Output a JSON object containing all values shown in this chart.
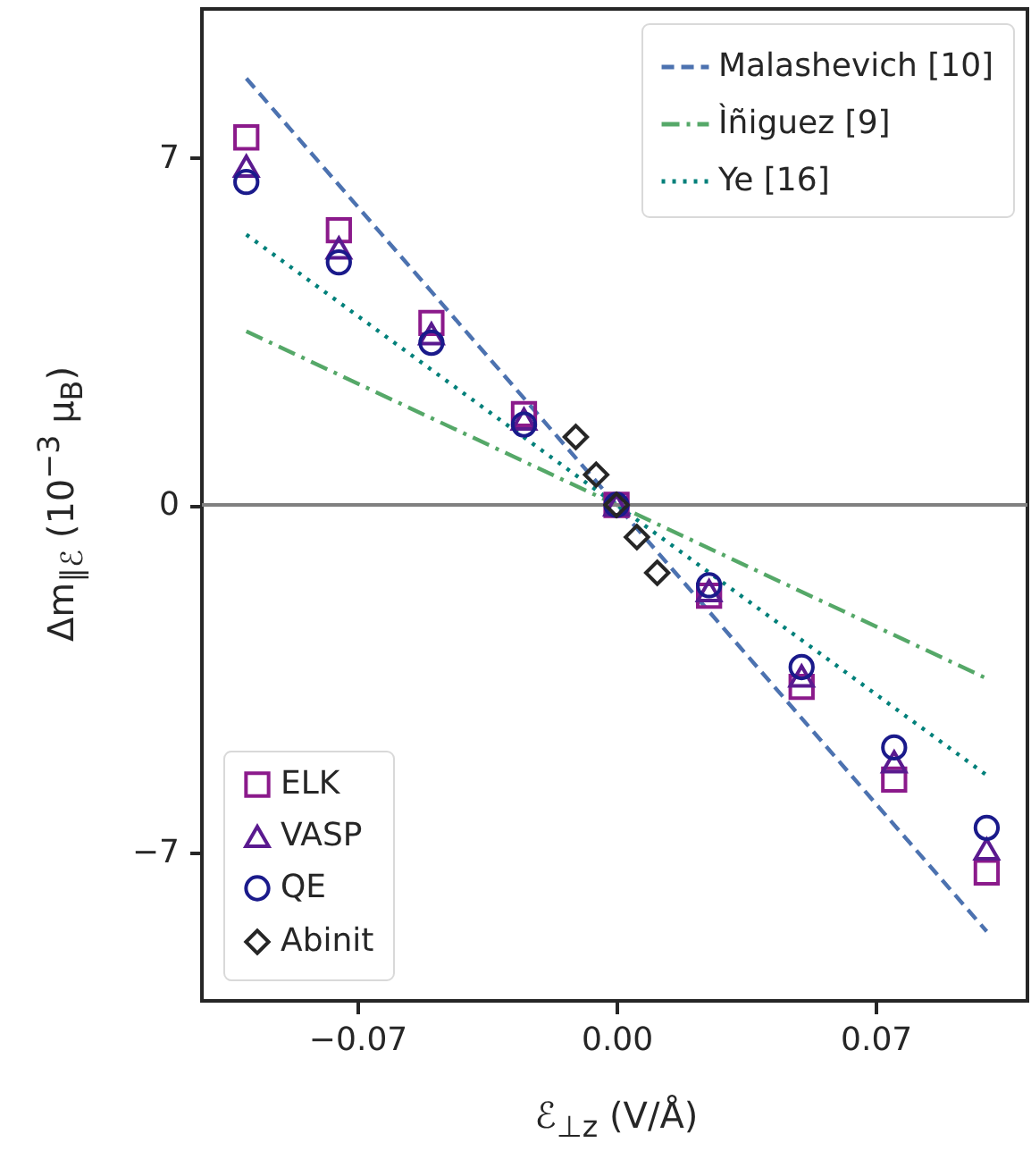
{
  "chart_data": {
    "type": "scatter",
    "xlabel": "ℰ$_{⊥z}$ (V/Å)",
    "ylabel": "Δm$_{∥ℰ}$ (10$^{−3}$ μ$_{B}$)",
    "xlim": [
      -0.112,
      0.111
    ],
    "ylim": [
      -10,
      10
    ],
    "xticks": [
      {
        "value": -0.07,
        "label": "−0.07"
      },
      {
        "value": 0,
        "label": "0.00"
      },
      {
        "value": 0.07,
        "label": "0.07"
      }
    ],
    "yticks": [
      {
        "value": -7,
        "label": "−7"
      },
      0,
      7
    ],
    "grid": false,
    "legend": "top right",
    "ref_lines": [
      {
        "axis": "y",
        "value": 0,
        "color": "#808080"
      }
    ],
    "series": [
      {
        "name": "Malashevich [10]",
        "type": "line",
        "line_style": "dashed",
        "color": "#4c72b0",
        "x": [
          -0.1,
          0.1
        ],
        "values": [
          8.6,
          -8.6
        ]
      },
      {
        "name": "Ìñiguez [9]",
        "type": "line",
        "line_style": "dashdot",
        "color": "#55a868",
        "x": [
          -0.1,
          0.1
        ],
        "values": [
          3.5,
          -3.5
        ]
      },
      {
        "name": "Ye [16]",
        "type": "line",
        "line_style": "dotted",
        "color": "#00807a",
        "x": [
          -0.1,
          0.1
        ],
        "values": [
          5.45,
          -5.45
        ]
      },
      {
        "name": "ELK",
        "marker": "square",
        "color": "#8b1a8b",
        "x": [
          -0.1,
          -0.075,
          -0.05,
          -0.025,
          0,
          0.025,
          0.05,
          0.075,
          0.1
        ],
        "values": [
          7.41,
          5.54,
          3.67,
          1.83,
          0,
          -1.83,
          -3.67,
          -5.54,
          -7.41
        ]
      },
      {
        "name": "VASP",
        "marker": "triangle",
        "color": "#5a1a8f",
        "x": [
          -0.1,
          -0.075,
          -0.05,
          -0.025,
          0,
          0.025,
          0.05,
          0.075,
          0.1
        ],
        "values": [
          6.83,
          5.18,
          3.45,
          1.73,
          0,
          -1.73,
          -3.45,
          -5.18,
          -6.94
        ]
      },
      {
        "name": "QE",
        "marker": "circle",
        "color": "#1a1a8b",
        "x": [
          -0.1,
          -0.075,
          -0.05,
          -0.025,
          0,
          0.025,
          0.05,
          0.075,
          0.1
        ],
        "values": [
          6.51,
          4.89,
          3.27,
          1.62,
          0,
          -1.62,
          -3.27,
          -4.89,
          -6.51
        ]
      },
      {
        "name": "Abinit",
        "marker": "diamond",
        "color": "#262626",
        "x": [
          -0.011,
          -0.0055,
          0,
          0.0055,
          0.011
        ],
        "values": [
          1.37,
          0.61,
          0,
          -0.65,
          -1.37
        ]
      }
    ]
  }
}
